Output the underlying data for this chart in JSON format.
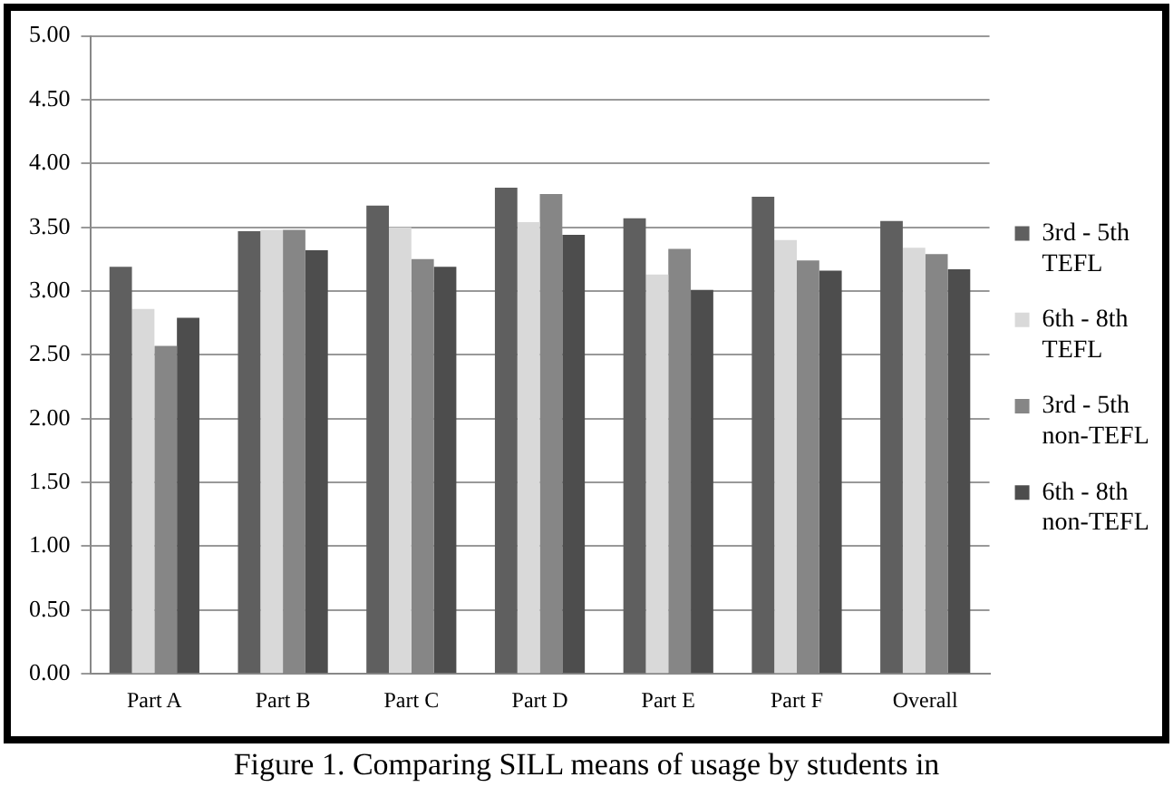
{
  "chart_data": {
    "type": "bar",
    "categories": [
      "Part A",
      "Part B",
      "Part C",
      "Part D",
      "Part E",
      "Part F",
      "Overall"
    ],
    "series": [
      {
        "name": "3rd - 5th TEFL",
        "color": "#5f5f5f",
        "values": [
          3.19,
          3.47,
          3.67,
          3.81,
          3.57,
          3.74,
          3.55
        ]
      },
      {
        "name": "6th - 8th TEFL",
        "color": "#d9d9d9",
        "values": [
          2.86,
          3.48,
          3.5,
          3.54,
          3.13,
          3.4,
          3.34
        ]
      },
      {
        "name": "3rd - 5th non-TEFL",
        "color": "#868686",
        "values": [
          2.57,
          3.48,
          3.25,
          3.76,
          3.33,
          3.24,
          3.29
        ]
      },
      {
        "name": "6th - 8th non-TEFL",
        "color": "#4d4d4d",
        "values": [
          2.79,
          3.32,
          3.19,
          3.44,
          3.01,
          3.16,
          3.17
        ]
      }
    ],
    "ylim": [
      0,
      5
    ],
    "yticks": [
      {
        "value": 0,
        "label": "0.00"
      },
      {
        "value": 0.5,
        "label": "0.50"
      },
      {
        "value": 1,
        "label": "1.00"
      },
      {
        "value": 1.5,
        "label": "1.50"
      },
      {
        "value": 2,
        "label": "2.00"
      },
      {
        "value": 2.5,
        "label": "2.50"
      },
      {
        "value": 3,
        "label": "3.00"
      },
      {
        "value": 3.5,
        "label": "3.50"
      },
      {
        "value": 4,
        "label": "4.00"
      },
      {
        "value": 4.5,
        "label": "4.50"
      },
      {
        "value": 5,
        "label": "5.00"
      }
    ],
    "grid": "y",
    "legend": "right",
    "annotations": [
      "Figure 1. Comparing SILL means of usage by students in"
    ]
  }
}
